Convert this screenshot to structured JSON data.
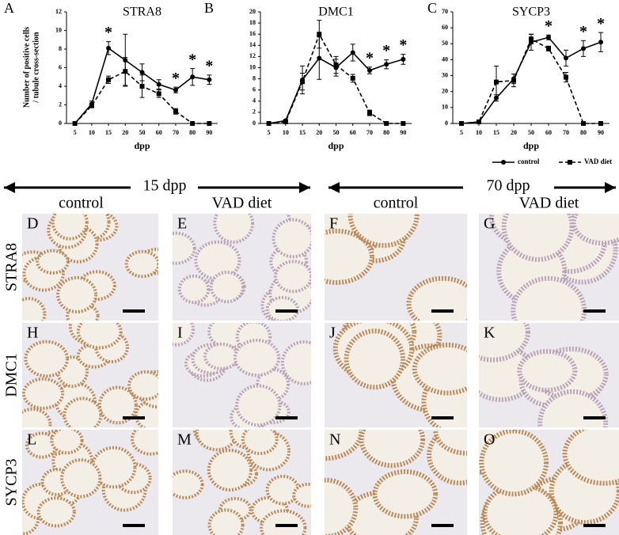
{
  "chart_data": [
    {
      "type": "line",
      "panel": "A",
      "title": "STRA8",
      "xlabel": "dpp",
      "ylabel": [
        "Number of positive cells",
        "/ tubule cross-section"
      ],
      "categories": [
        "5",
        "10",
        "15",
        "20",
        "50",
        "60",
        "70",
        "80",
        "90"
      ],
      "ylim": [
        0,
        12
      ],
      "yticks": [
        0,
        2,
        4,
        6,
        8,
        10,
        12
      ],
      "series": [
        {
          "name": "control",
          "color": "#000000",
          "marker": "circle",
          "dashed": false,
          "values": [
            0,
            2.1,
            8.1,
            6.8,
            5.5,
            4.2,
            3.6,
            5.0,
            4.7
          ],
          "errors": [
            0,
            0.3,
            0.7,
            2.8,
            0.9,
            0.5,
            0.3,
            0.9,
            0.5
          ]
        },
        {
          "name": "VAD diet",
          "color": "#000000",
          "marker": "square",
          "dashed": true,
          "values": [
            0,
            1.9,
            4.7,
            5.6,
            4.0,
            3.2,
            1.3,
            0,
            0
          ],
          "errors": [
            0,
            0.2,
            0.4,
            1.5,
            1.2,
            0.4,
            0.3,
            0,
            0
          ]
        }
      ],
      "annotations": [
        {
          "x": "15",
          "text": "*"
        },
        {
          "x": "70",
          "text": "*"
        },
        {
          "x": "80",
          "text": "*"
        },
        {
          "x": "90",
          "text": "*"
        }
      ]
    },
    {
      "type": "line",
      "panel": "B",
      "title": "DMC1",
      "xlabel": "dpp",
      "categories": [
        "5",
        "10",
        "15",
        "20",
        "50",
        "60",
        "70",
        "80",
        "90"
      ],
      "ylim": [
        0,
        20
      ],
      "yticks": [
        0,
        2,
        4,
        6,
        8,
        10,
        12,
        14,
        16,
        18,
        20
      ],
      "series": [
        {
          "name": "control",
          "color": "#000000",
          "marker": "circle",
          "dashed": false,
          "values": [
            0,
            0.5,
            7.8,
            11.7,
            10.0,
            12.7,
            9.5,
            10.6,
            11.5
          ],
          "errors": [
            0,
            0.2,
            2.5,
            3.8,
            1.5,
            1.5,
            0.6,
            0.8,
            0.9
          ]
        },
        {
          "name": "VAD diet",
          "color": "#000000",
          "marker": "square",
          "dashed": true,
          "values": [
            0,
            0.3,
            7.5,
            16,
            10.5,
            8.1,
            1.9,
            0,
            0
          ],
          "errors": [
            0,
            0.2,
            1.5,
            2.5,
            1.5,
            0.7,
            0.5,
            0,
            0
          ]
        }
      ],
      "annotations": [
        {
          "x": "70",
          "text": "*"
        },
        {
          "x": "80",
          "text": "*"
        },
        {
          "x": "90",
          "text": "*"
        }
      ]
    },
    {
      "type": "line",
      "panel": "C",
      "title": "SYCP3",
      "xlabel": "dpp",
      "categories": [
        "5",
        "10",
        "15",
        "20",
        "50",
        "60",
        "70",
        "80",
        "90"
      ],
      "ylim": [
        0,
        70
      ],
      "yticks": [
        0,
        10,
        20,
        30,
        40,
        50,
        60,
        70
      ],
      "series": [
        {
          "name": "control",
          "color": "#000000",
          "marker": "circle",
          "dashed": false,
          "values": [
            0,
            1,
            16,
            28,
            51,
            54,
            41,
            47,
            51
          ],
          "errors": [
            0,
            0.5,
            2,
            3,
            5,
            1.5,
            5,
            5,
            6
          ]
        },
        {
          "name": "VAD diet",
          "color": "#000000",
          "marker": "square",
          "dashed": true,
          "values": [
            0,
            1,
            26,
            27,
            53,
            47,
            29,
            0,
            0
          ],
          "errors": [
            0,
            0.5,
            10,
            4,
            3,
            1.5,
            3,
            0,
            0
          ]
        }
      ],
      "annotations": [
        {
          "x": "60",
          "text": "*"
        },
        {
          "x": "80",
          "text": "*"
        },
        {
          "x": "90",
          "text": "*"
        }
      ],
      "legend": "below"
    }
  ],
  "micrographs": {
    "timepoints": [
      "15 dpp",
      "70 dpp"
    ],
    "columns": [
      "control",
      "VAD diet",
      "control",
      "VAD diet"
    ],
    "rows": [
      "STRA8",
      "DMC1",
      "SYCP3"
    ],
    "panels": [
      [
        "D",
        "E",
        "F",
        "G"
      ],
      [
        "H",
        "I",
        "J",
        "K"
      ],
      [
        "L",
        "M",
        "N",
        "O"
      ]
    ]
  }
}
